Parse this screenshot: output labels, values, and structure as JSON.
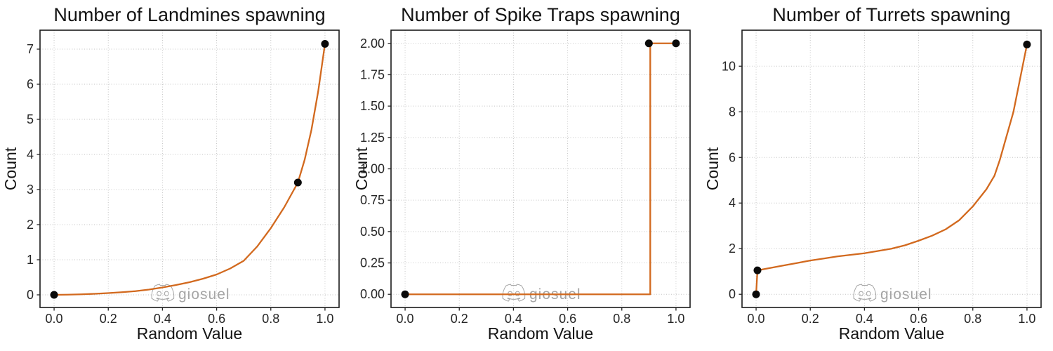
{
  "figure": {
    "background": "#ffffff"
  },
  "style": {
    "line_color": "#d2691e",
    "marker_color": "#0a0a0a",
    "grid_color": "#c6c6c6",
    "spine_color": "#1a1a1a",
    "tick_color": "#262626",
    "watermark_color": "#a5a5a5"
  },
  "watermark": {
    "text": "giosuel",
    "icon": "discord-logo"
  },
  "chart_data": [
    {
      "type": "line",
      "title": "Number of Landmines spawning",
      "xlabel": "Random Value",
      "ylabel": "Count",
      "grid": true,
      "legend": "none",
      "xlim": [
        -0.052,
        1.052
      ],
      "ylim": [
        -0.36,
        7.54
      ],
      "xticks": [
        {
          "v": 0.0,
          "label": "0.0"
        },
        {
          "v": 0.2,
          "label": "0.2"
        },
        {
          "v": 0.4,
          "label": "0.4"
        },
        {
          "v": 0.6,
          "label": "0.6"
        },
        {
          "v": 0.8,
          "label": "0.8"
        },
        {
          "v": 1.0,
          "label": "1.0"
        }
      ],
      "yticks": [
        {
          "v": 0,
          "label": "0"
        },
        {
          "v": 1,
          "label": "1"
        },
        {
          "v": 2,
          "label": "2"
        },
        {
          "v": 3,
          "label": "3"
        },
        {
          "v": 4,
          "label": "4"
        },
        {
          "v": 5,
          "label": "5"
        },
        {
          "v": 6,
          "label": "6"
        },
        {
          "v": 7,
          "label": "7"
        }
      ],
      "line": [
        [
          0,
          0
        ],
        [
          0.05,
          0.005
        ],
        [
          0.1,
          0.015
        ],
        [
          0.15,
          0.03
        ],
        [
          0.2,
          0.05
        ],
        [
          0.25,
          0.075
        ],
        [
          0.3,
          0.105
        ],
        [
          0.35,
          0.15
        ],
        [
          0.4,
          0.21
        ],
        [
          0.45,
          0.28
        ],
        [
          0.5,
          0.36
        ],
        [
          0.55,
          0.46
        ],
        [
          0.6,
          0.58
        ],
        [
          0.65,
          0.75
        ],
        [
          0.7,
          0.97
        ],
        [
          0.75,
          1.38
        ],
        [
          0.8,
          1.9
        ],
        [
          0.85,
          2.5
        ],
        [
          0.9,
          3.2
        ],
        [
          0.925,
          3.85
        ],
        [
          0.95,
          4.7
        ],
        [
          0.975,
          5.8
        ],
        [
          1,
          7.15
        ]
      ],
      "markers": [
        [
          0,
          0
        ],
        [
          0.9,
          3.2
        ],
        [
          1.0,
          7.15
        ]
      ]
    },
    {
      "type": "line",
      "title": "Number of Spike Traps spawning",
      "xlabel": "Random Value",
      "ylabel": "Count",
      "grid": true,
      "legend": "none",
      "xlim": [
        -0.052,
        1.052
      ],
      "ylim": [
        -0.105,
        2.105
      ],
      "xticks": [
        {
          "v": 0.0,
          "label": "0.0"
        },
        {
          "v": 0.2,
          "label": "0.2"
        },
        {
          "v": 0.4,
          "label": "0.4"
        },
        {
          "v": 0.6,
          "label": "0.6"
        },
        {
          "v": 0.8,
          "label": "0.8"
        },
        {
          "v": 1.0,
          "label": "1.0"
        }
      ],
      "yticks": [
        {
          "v": 0.0,
          "label": "0.00"
        },
        {
          "v": 0.25,
          "label": "0.25"
        },
        {
          "v": 0.5,
          "label": "0.50"
        },
        {
          "v": 0.75,
          "label": "0.75"
        },
        {
          "v": 1.0,
          "label": "1.00"
        },
        {
          "v": 1.25,
          "label": "1.25"
        },
        {
          "v": 1.5,
          "label": "1.50"
        },
        {
          "v": 1.75,
          "label": "1.75"
        },
        {
          "v": 2.0,
          "label": "2.00"
        }
      ],
      "line": [
        [
          0,
          0
        ],
        [
          0.905,
          0
        ],
        [
          0.905,
          2
        ],
        [
          1,
          2
        ]
      ],
      "markers": [
        [
          0,
          0
        ],
        [
          0.9,
          2
        ],
        [
          1.0,
          2
        ]
      ]
    },
    {
      "type": "line",
      "title": "Number of Turrets spawning",
      "xlabel": "Random Value",
      "ylabel": "Count",
      "grid": true,
      "legend": "none",
      "xlim": [
        -0.052,
        1.052
      ],
      "ylim": [
        -0.578,
        11.578
      ],
      "xticks": [
        {
          "v": 0.0,
          "label": "0.0"
        },
        {
          "v": 0.2,
          "label": "0.2"
        },
        {
          "v": 0.4,
          "label": "0.4"
        },
        {
          "v": 0.6,
          "label": "0.6"
        },
        {
          "v": 0.8,
          "label": "0.8"
        },
        {
          "v": 1.0,
          "label": "1.0"
        }
      ],
      "yticks": [
        {
          "v": 0,
          "label": "0"
        },
        {
          "v": 2,
          "label": "2"
        },
        {
          "v": 4,
          "label": "4"
        },
        {
          "v": 6,
          "label": "6"
        },
        {
          "v": 8,
          "label": "8"
        },
        {
          "v": 10,
          "label": "10"
        }
      ],
      "line": [
        [
          0,
          0
        ],
        [
          0.005,
          1.05
        ],
        [
          0.05,
          1.15
        ],
        [
          0.1,
          1.26
        ],
        [
          0.15,
          1.37
        ],
        [
          0.2,
          1.48
        ],
        [
          0.25,
          1.57
        ],
        [
          0.3,
          1.66
        ],
        [
          0.35,
          1.73
        ],
        [
          0.4,
          1.8
        ],
        [
          0.45,
          1.9
        ],
        [
          0.5,
          2.0
        ],
        [
          0.55,
          2.15
        ],
        [
          0.6,
          2.35
        ],
        [
          0.65,
          2.57
        ],
        [
          0.7,
          2.85
        ],
        [
          0.75,
          3.25
        ],
        [
          0.8,
          3.85
        ],
        [
          0.85,
          4.6
        ],
        [
          0.88,
          5.2
        ],
        [
          0.9,
          5.9
        ],
        [
          0.95,
          8.0
        ],
        [
          1,
          10.95
        ]
      ],
      "markers": [
        [
          0,
          0
        ],
        [
          0.005,
          1.05
        ],
        [
          1.0,
          10.95
        ]
      ]
    }
  ]
}
